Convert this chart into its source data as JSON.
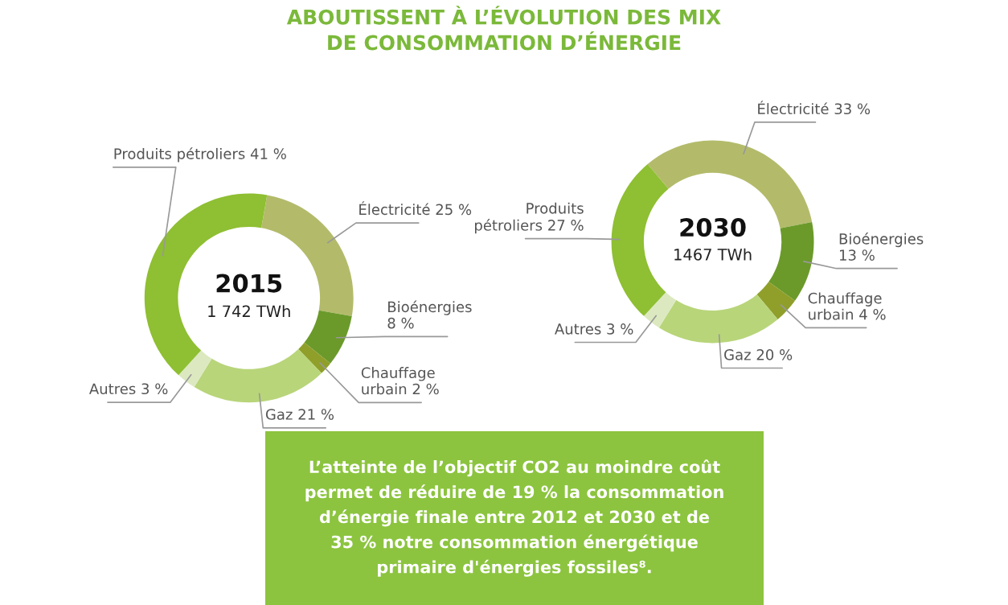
{
  "chart_data": [
    {
      "type": "donut",
      "title": "2015",
      "subtitle": "1 742 TWh",
      "categories": [
        "Électricité",
        "Bioénergies",
        "Chauffage urbain",
        "Gaz",
        "Autres",
        "Produits pétroliers"
      ],
      "values": [
        25,
        8,
        2,
        21,
        3,
        41
      ],
      "value_labels": [
        "25 %",
        "8 %",
        "2 %",
        "21 %",
        "3 %",
        "41 %"
      ],
      "colors": [
        "#b3bb6b",
        "#6b9a2a",
        "#8f9f2a",
        "#b8d57a",
        "#dce9c0",
        "#8fbf32"
      ]
    },
    {
      "type": "donut",
      "title": "2030",
      "subtitle": "1467 TWh",
      "categories": [
        "Électricité",
        "Bioénergies",
        "Chauffage urbain",
        "Gaz",
        "Autres",
        "Produits pétroliers"
      ],
      "values": [
        33,
        13,
        4,
        20,
        3,
        27
      ],
      "value_labels": [
        "33 %",
        "13 %",
        "4 %",
        "20 %",
        "3 %",
        "27 %"
      ],
      "colors": [
        "#b3bb6b",
        "#6b9a2a",
        "#8f9f2a",
        "#b8d57a",
        "#dce9c0",
        "#8fbf32"
      ]
    },
    {
      "type": "other",
      "title": "ABOUTISSENT À L’ÉVOLUTION DES MIX\nDE CONSOMMATION D’ÉNERGIE",
      "annotations": [
        "L’atteinte de l’objectif CO2 au moindre coût\npermet de réduire de 19 % la consommation\nd’énergie finale entre 2012 et 2030 et de\n35 % notre consommation énergétique\nprimaire d'énergies fossiles⁸."
      ]
    }
  ]
}
